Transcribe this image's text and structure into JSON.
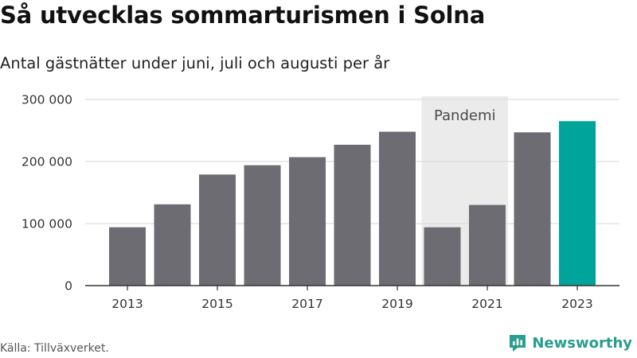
{
  "header": {
    "title": "Så utvecklas sommarturismen i Solna",
    "subtitle": "Antal gästnätter under juni, juli och augusti per år"
  },
  "footer": {
    "source": "Källa: Tillväxverket.",
    "brand": "Newsworthy"
  },
  "colors": {
    "bar": "#6e6c73",
    "highlight": "#00a49a",
    "band": "#ebebeb",
    "grid": "#dddddd",
    "brand": "#2a9d8f"
  },
  "chart_data": {
    "type": "bar",
    "title": "Så utvecklas sommarturismen i Solna",
    "subtitle": "Antal gästnätter under juni, juli och augusti per år",
    "categories": [
      "2013",
      "2014",
      "2015",
      "2016",
      "2017",
      "2018",
      "2019",
      "2020",
      "2021",
      "2022",
      "2023"
    ],
    "values": [
      94000,
      131000,
      179000,
      194000,
      207000,
      227000,
      248000,
      94000,
      130000,
      247000,
      265000
    ],
    "highlight_index": 10,
    "x_tick_labels": [
      "2013",
      "2015",
      "2017",
      "2019",
      "2021",
      "2023"
    ],
    "y_ticks": [
      0,
      100000,
      200000,
      300000
    ],
    "y_tick_labels": [
      "0",
      "100 000",
      "200 000",
      "300 000"
    ],
    "ylim": [
      0,
      300000
    ],
    "grid": true,
    "band": {
      "label": "Pandemi",
      "from": "2020",
      "to": "2021"
    }
  }
}
